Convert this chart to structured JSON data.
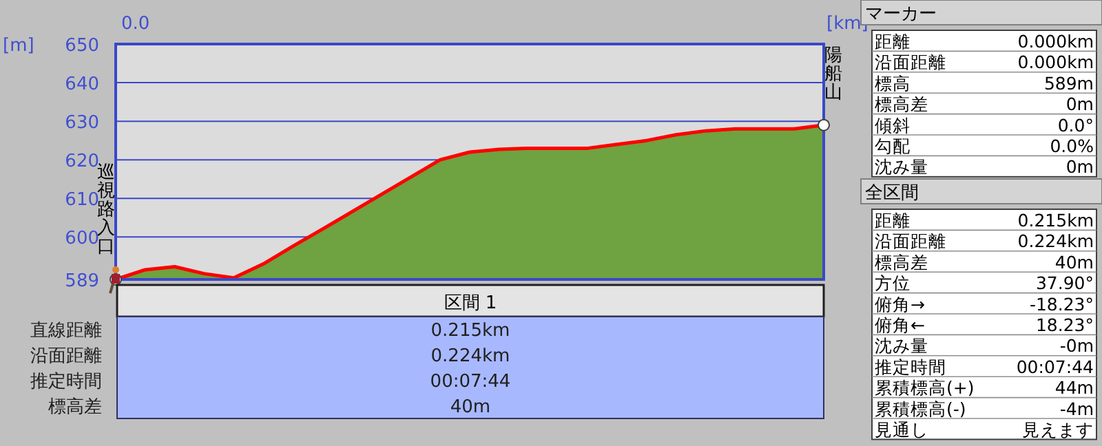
{
  "chart_data": [
    {
      "type": "area",
      "xlabel": "[km]",
      "ylabel": "[m]",
      "categories": [
        null,
        null,
        null,
        null,
        null,
        null,
        null,
        null,
        null,
        null,
        null,
        null,
        null,
        null,
        null,
        null,
        null,
        null,
        null,
        null,
        null,
        null,
        null,
        null,
        null
      ],
      "series": [
        {
          "color": "#6fa240",
          "values": [
            589,
            591.5,
            592.3,
            590.5,
            589.4,
            593,
            597.6,
            602,
            606.5,
            611,
            615.5,
            620,
            622,
            622.7,
            623,
            623,
            623,
            624,
            625,
            626.5,
            627.5,
            628,
            628,
            628,
            629
          ]
        }
      ],
      "ylim": [
        589,
        650
      ],
      "yticks": [
        589,
        600,
        610,
        620,
        630,
        640,
        650
      ],
      "grid": "y",
      "annotations": [
        "0.0",
        {
          "text": "巡視路入口",
          "y": 589
        },
        {
          "text": "陽船山",
          "y": 629
        }
      ]
    },
    {
      "type": "other",
      "title": "区間 1",
      "categories": [
        "直線距離",
        "沿面距離",
        "推定時間",
        "標高差"
      ],
      "value_labels": [
        "0.215km",
        "0.224km",
        "00:07:44",
        "40m"
      ]
    },
    {
      "type": "other",
      "title": "マーカー",
      "categories": [
        "距離",
        "沿面距離",
        "標高",
        "標高差",
        "傾斜",
        "勾配",
        "沈み量"
      ],
      "value_labels": [
        "0.000km",
        "0.000km",
        "589m",
        "0m",
        "0.0°",
        "0.0%",
        "0m"
      ]
    },
    {
      "type": "other",
      "title": "全区間",
      "categories": [
        "距離",
        "沿面距離",
        "標高差",
        "方位",
        "俯角→",
        "俯角←",
        "沈み量",
        "推定時間",
        "累積標高(+)",
        "累積標高(-)",
        "見通し"
      ],
      "value_labels": [
        "0.215km",
        "0.224km",
        "40m",
        "37.90°",
        "-18.23°",
        "18.23°",
        "-0m",
        "00:07:44",
        "44m",
        "-4m",
        "見えます"
      ]
    }
  ]
}
